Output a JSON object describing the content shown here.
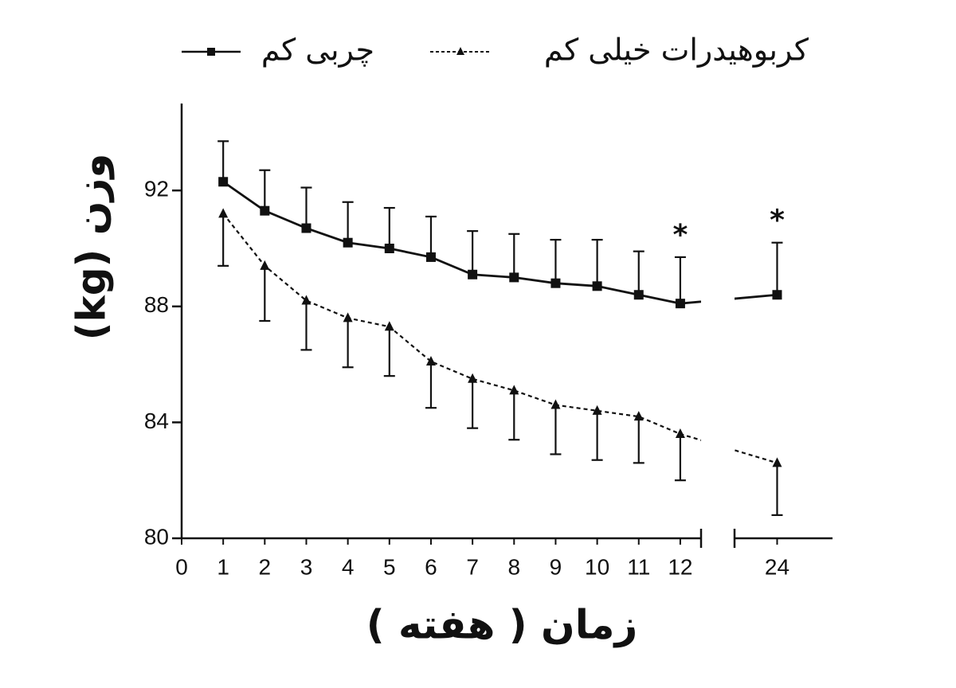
{
  "chart_data": {
    "type": "line",
    "x_label": "زمان ( هفته )",
    "y_label": "وزن (kg)",
    "x": [
      1,
      2,
      3,
      4,
      5,
      6,
      7,
      8,
      9,
      10,
      11,
      12,
      24
    ],
    "xlim": [
      [
        0,
        12.5
      ],
      [
        23,
        25.3
      ]
    ],
    "xticks": [
      0,
      1,
      2,
      3,
      4,
      5,
      6,
      7,
      8,
      9,
      10,
      11,
      12,
      24
    ],
    "ylim": [
      80,
      95
    ],
    "yticks": [
      80,
      84,
      88,
      92
    ],
    "series": [
      {
        "name": "چربی کم",
        "color": "#111111",
        "line_style": "solid",
        "marker": "square",
        "error_direction": "up",
        "values": [
          92.3,
          91.3,
          90.7,
          90.2,
          90.0,
          89.7,
          89.1,
          89.0,
          88.8,
          88.7,
          88.4,
          88.1,
          88.4
        ],
        "errors": [
          1.4,
          1.4,
          1.4,
          1.4,
          1.4,
          1.4,
          1.5,
          1.5,
          1.5,
          1.6,
          1.5,
          1.6,
          1.8
        ]
      },
      {
        "name": "کربوهیدرات خیلی کم",
        "color": "#111111",
        "line_style": "dashed",
        "marker": "triangle",
        "error_direction": "down",
        "values": [
          91.2,
          89.4,
          88.2,
          87.6,
          87.3,
          86.1,
          85.5,
          85.1,
          84.6,
          84.4,
          84.2,
          83.6,
          82.6
        ],
        "errors": [
          1.8,
          1.9,
          1.7,
          1.7,
          1.7,
          1.6,
          1.7,
          1.7,
          1.7,
          1.7,
          1.6,
          1.6,
          1.8
        ]
      }
    ],
    "annotations": [
      {
        "text": "*",
        "x": 12
      },
      {
        "text": "*",
        "x": 24
      }
    ]
  }
}
